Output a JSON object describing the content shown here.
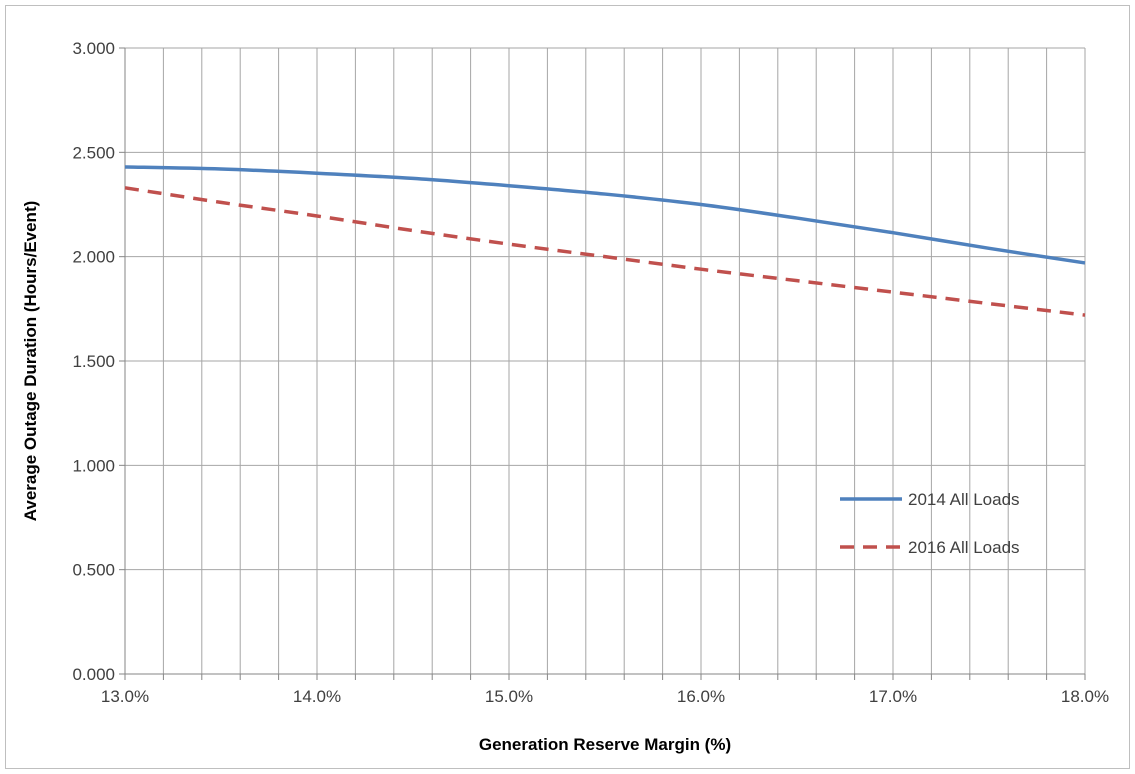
{
  "chart_data": {
    "type": "line",
    "title": "",
    "xlabel": "Generation Reserve Margin (%)",
    "ylabel": "Average Outage Duration (Hours/Event)",
    "xlim": [
      13.0,
      18.0
    ],
    "ylim": [
      0.0,
      3.0
    ],
    "x_ticks": [
      13.0,
      14.0,
      15.0,
      16.0,
      17.0,
      18.0
    ],
    "x_tick_labels": [
      "13.0%",
      "14.0%",
      "15.0%",
      "16.0%",
      "17.0%",
      "18.0%"
    ],
    "y_ticks": [
      0.0,
      0.5,
      1.0,
      1.5,
      2.0,
      2.5,
      3.0
    ],
    "y_tick_labels": [
      "0.000",
      "0.500",
      "1.000",
      "1.500",
      "2.000",
      "2.500",
      "3.000"
    ],
    "x_minor_step": 0.2,
    "grid": true,
    "legend_position": "right",
    "series": [
      {
        "name": "2014 All Loads",
        "color": "#4f81bd",
        "dash": "solid",
        "x": [
          13.0,
          13.5,
          14.0,
          14.5,
          15.0,
          15.5,
          16.0,
          16.5,
          17.0,
          17.5,
          18.0
        ],
        "y": [
          2.43,
          2.42,
          2.4,
          2.375,
          2.34,
          2.3,
          2.25,
          2.185,
          2.115,
          2.04,
          1.97
        ]
      },
      {
        "name": "2016 All Loads",
        "color": "#c0504d",
        "dash": "dashed",
        "x": [
          13.0,
          13.5,
          14.0,
          14.5,
          15.0,
          15.5,
          16.0,
          16.5,
          17.0,
          17.5,
          18.0
        ],
        "y": [
          2.33,
          2.26,
          2.195,
          2.125,
          2.06,
          2.0,
          1.94,
          1.885,
          1.83,
          1.775,
          1.72
        ]
      }
    ]
  }
}
